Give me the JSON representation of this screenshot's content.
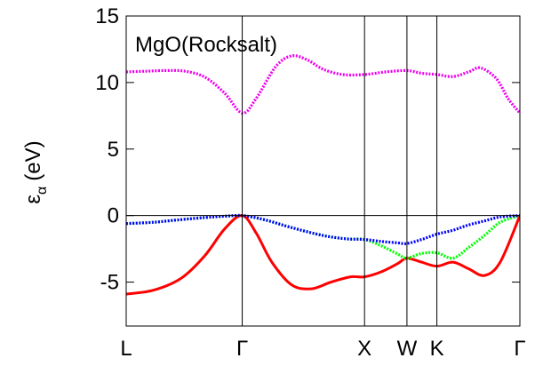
{
  "chart_data": {
    "type": "line",
    "title": "MgO(Rocksalt)",
    "ylabel_symbol": "ε",
    "ylabel_subscript": "α",
    "ylabel_unit": "(eV)",
    "xlabel": "",
    "ylim": [
      -8.3,
      15
    ],
    "yticks": [
      15,
      10,
      5,
      0,
      -5
    ],
    "ytick_labels": [
      "15",
      "10",
      "5",
      "0",
      "-5"
    ],
    "kpath_positions": [
      0,
      0.2947,
      0.6054,
      0.7131,
      0.7891,
      1.0
    ],
    "kpath_labels": [
      "L",
      "Γ",
      "X",
      "W",
      "K",
      "Γ"
    ],
    "zero_line": 0,
    "grid": false,
    "legend": "none",
    "series": [
      {
        "color": "#ff0000",
        "style": "solid",
        "x": [
          0,
          0.07,
          0.14,
          0.2,
          0.25,
          0.2947,
          0.33,
          0.37,
          0.42,
          0.47,
          0.52,
          0.57,
          0.6054,
          0.65,
          0.69,
          0.7131,
          0.75,
          0.7891,
          0.83,
          0.87,
          0.91,
          0.95,
          1.0
        ],
        "y": [
          -5.9,
          -5.6,
          -4.7,
          -3.0,
          -1.0,
          0.0,
          -1.3,
          -3.5,
          -5.2,
          -5.5,
          -5.0,
          -4.6,
          -4.6,
          -4.2,
          -3.6,
          -3.2,
          -3.5,
          -3.8,
          -3.5,
          -4.0,
          -4.5,
          -3.5,
          0.0
        ]
      },
      {
        "color": "#00ff00",
        "style": "dotted",
        "x": [
          0,
          0.07,
          0.14,
          0.2,
          0.25,
          0.2947,
          0.35,
          0.42,
          0.5,
          0.56,
          0.6054,
          0.65,
          0.69,
          0.7131,
          0.75,
          0.7891,
          0.83,
          0.87,
          0.91,
          0.95,
          1.0
        ],
        "y": [
          -0.6,
          -0.5,
          -0.3,
          -0.15,
          -0.05,
          0.0,
          -0.3,
          -0.9,
          -1.5,
          -1.75,
          -1.8,
          -2.3,
          -2.9,
          -3.2,
          -2.85,
          -2.8,
          -3.2,
          -2.4,
          -1.5,
          -0.5,
          0.0
        ]
      },
      {
        "color": "#0000ff",
        "style": "dotted",
        "x": [
          0,
          0.07,
          0.14,
          0.2,
          0.25,
          0.2947,
          0.35,
          0.42,
          0.5,
          0.56,
          0.6054,
          0.65,
          0.69,
          0.7131,
          0.75,
          0.7891,
          0.83,
          0.87,
          0.91,
          0.95,
          1.0
        ],
        "y": [
          -0.6,
          -0.5,
          -0.3,
          -0.15,
          -0.05,
          0.0,
          -0.3,
          -0.9,
          -1.5,
          -1.75,
          -1.8,
          -1.95,
          -2.05,
          -2.1,
          -1.8,
          -1.4,
          -1.1,
          -0.7,
          -0.4,
          -0.1,
          0.0
        ]
      },
      {
        "color": "#ee00ee",
        "style": "dotted",
        "x": [
          0,
          0.05,
          0.1,
          0.15,
          0.2,
          0.25,
          0.2947,
          0.33,
          0.38,
          0.42,
          0.46,
          0.5,
          0.55,
          0.6054,
          0.66,
          0.7131,
          0.75,
          0.7891,
          0.83,
          0.87,
          0.9,
          0.94,
          0.97,
          1.0
        ],
        "y": [
          10.8,
          10.85,
          10.9,
          10.85,
          10.4,
          9.2,
          7.7,
          8.8,
          11.2,
          12.0,
          11.7,
          11.0,
          10.6,
          10.6,
          10.8,
          10.9,
          10.7,
          10.6,
          10.45,
          10.8,
          11.1,
          10.3,
          8.8,
          7.7
        ]
      }
    ]
  }
}
